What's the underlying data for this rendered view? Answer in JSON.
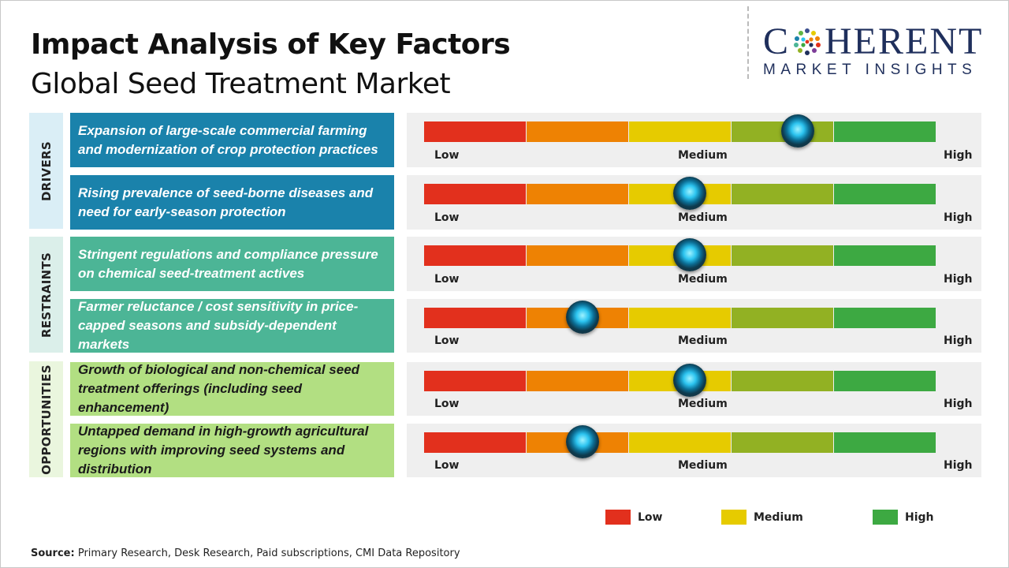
{
  "title": "Impact Analysis of Key Factors",
  "subtitle": "Global Seed Treatment Market",
  "logo": {
    "name_left": "C",
    "name_right": "HERENT",
    "tagline": "MARKET INSIGHTS"
  },
  "scale_labels": {
    "low": "Low",
    "medium": "Medium",
    "high": "High"
  },
  "colors": {
    "segments": [
      "#e2301d",
      "#ee8203",
      "#e6cb00",
      "#92b123",
      "#3da942"
    ],
    "drivers": "#1a82ab",
    "restraints": "#4cb596",
    "opportunities": "#b2df82",
    "drivers_tint": "#daeef6",
    "restraints_tint": "#dbefea",
    "opportunities_tint": "#eaf6de"
  },
  "chart_data": {
    "type": "table",
    "title": "Impact Analysis of Key Factors",
    "subtitle": "Global Seed Treatment Market",
    "scale": [
      "Low",
      "Medium",
      "High"
    ],
    "categories": [
      {
        "name": "DRIVERS",
        "factors": [
          {
            "text": "Expansion of large-scale commercial farming and modernization of crop protection practices",
            "impact": 0.73
          },
          {
            "text": "Rising prevalence of seed-borne diseases and need for early-season protection",
            "impact": 0.52
          }
        ]
      },
      {
        "name": "RESTRAINTS",
        "factors": [
          {
            "text": "Stringent regulations and compliance pressure on chemical seed-treatment actives",
            "impact": 0.52
          },
          {
            "text": "Farmer reluctance / cost sensitivity in price-capped seasons and subsidy-dependent markets",
            "impact": 0.31
          }
        ]
      },
      {
        "name": "OPPORTUNITIES",
        "factors": [
          {
            "text": "Growth of biological and non-chemical seed treatment offerings (including seed enhancement)",
            "impact": 0.52
          },
          {
            "text": "Untapped demand in high-growth agricultural regions with improving seed systems and distribution",
            "impact": 0.31
          }
        ]
      }
    ],
    "legend": [
      {
        "label": "Low",
        "color": "#e2301d"
      },
      {
        "label": "Medium",
        "color": "#e6cb00"
      },
      {
        "label": "High",
        "color": "#3da942"
      }
    ],
    "legend_position": "bottom-right"
  },
  "source": {
    "label": "Source:",
    "text": "Primary Research, Desk Research, Paid subscriptions, CMI Data Repository"
  }
}
